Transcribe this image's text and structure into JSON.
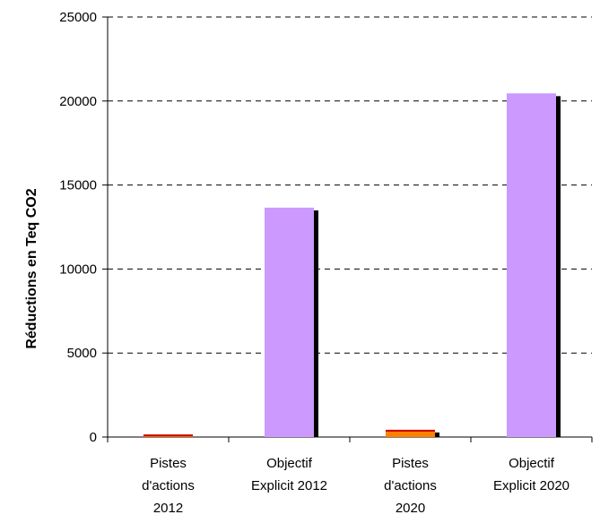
{
  "chart_data": {
    "type": "bar",
    "title": "",
    "xlabel": "",
    "ylabel": "Réductions en Teq CO2",
    "ylim": [
      0,
      25000
    ],
    "yticks": [
      0,
      5000,
      10000,
      15000,
      20000,
      25000
    ],
    "ytick_labels": [
      "0",
      "5000",
      "10000",
      "15000",
      "20000",
      "25000"
    ],
    "grid": "horizontal dashed",
    "categories": [
      [
        "Pistes",
        "d'actions",
        "2012"
      ],
      [
        "Objectif",
        "Explicit 2012"
      ],
      [
        "Pistes",
        "d'actions",
        "2020"
      ],
      [
        "Objectif",
        "Explicit 2020"
      ]
    ],
    "values": [
      150,
      13650,
      430,
      20450
    ],
    "colors": [
      "#FF8000",
      "#CC99FF",
      "#FF8000",
      "#CC99FF"
    ],
    "top_colors": [
      "#CC0000",
      "#CC99FF",
      "#CC0000",
      "#CC99FF"
    ],
    "shadow_color": "#000000"
  }
}
